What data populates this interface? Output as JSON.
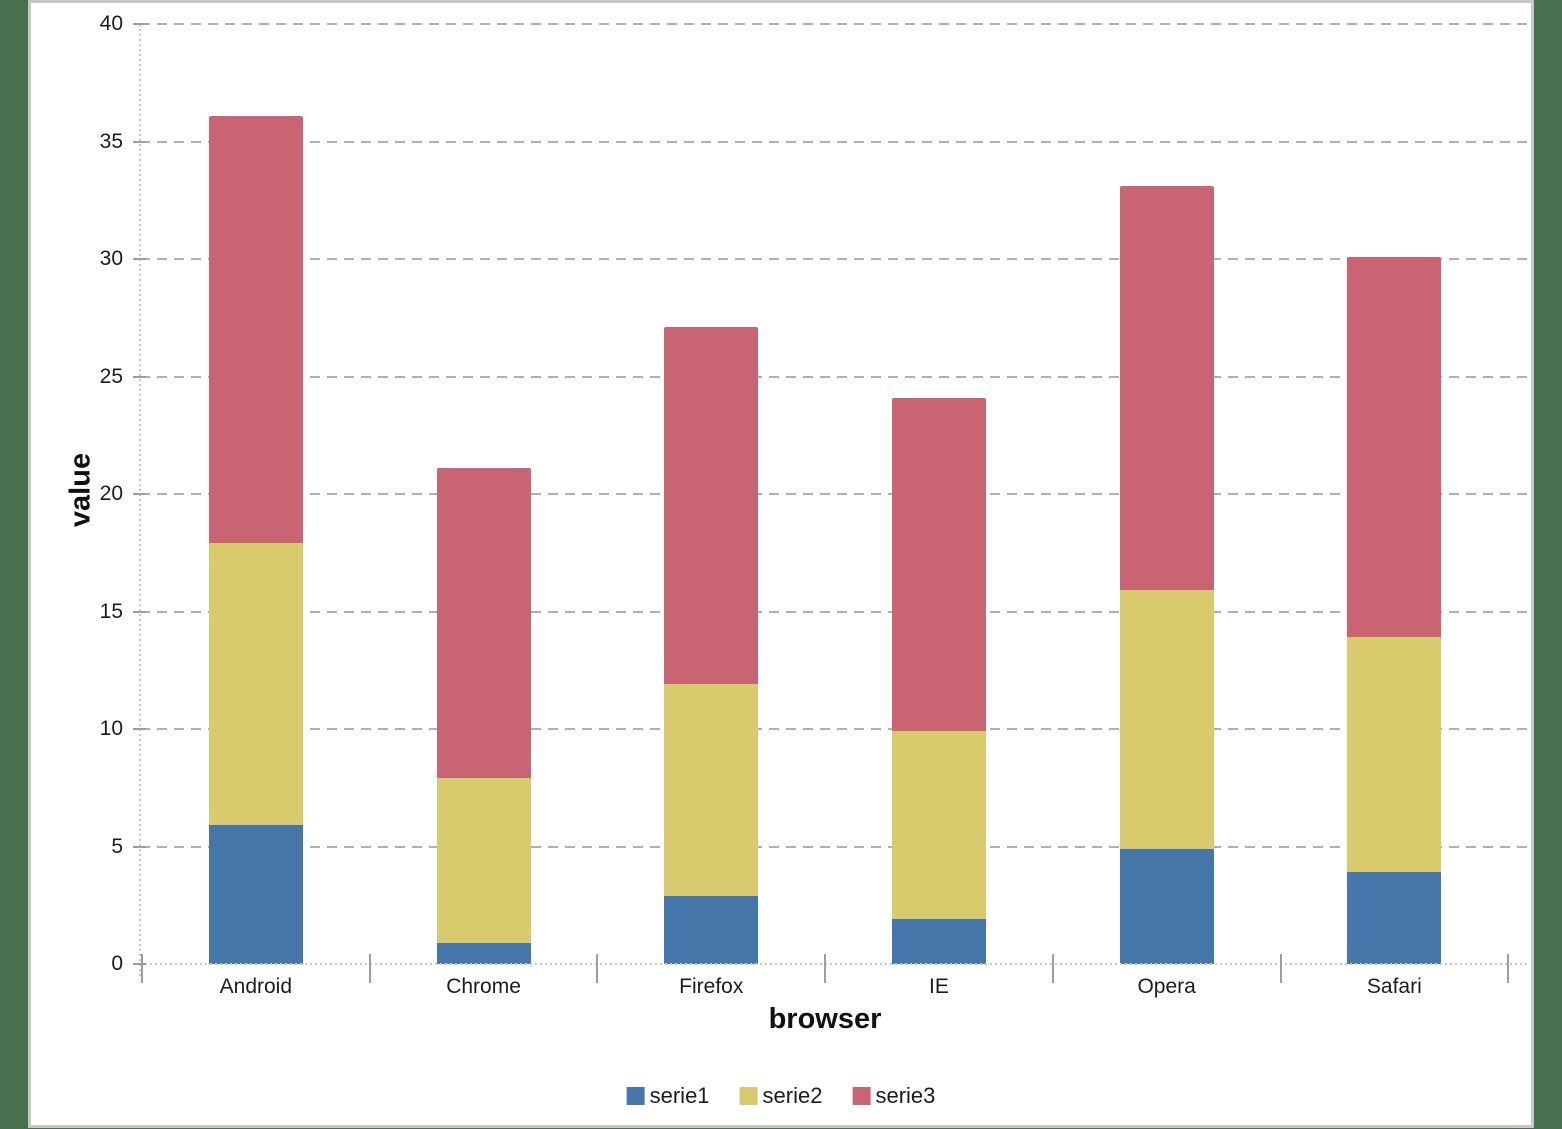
{
  "page": {
    "background_color": "#48704F",
    "canvas_background": "#FFFFFF",
    "canvas_border_color": "#C8C8C8"
  },
  "chart_data": {
    "type": "bar",
    "stacked": true,
    "categories": [
      "Android",
      "Chrome",
      "Firefox",
      "IE",
      "Opera",
      "Safari"
    ],
    "series": [
      {
        "name": "serie1",
        "color": "#4577AA",
        "values": [
          5.9,
          0.9,
          2.9,
          1.9,
          4.9,
          3.9
        ]
      },
      {
        "name": "serie2",
        "color": "#DACA6E",
        "values": [
          12,
          7,
          9,
          8,
          11,
          10
        ]
      },
      {
        "name": "serie3",
        "color": "#C96473",
        "values": [
          18.2,
          13.2,
          15.2,
          14.2,
          17.2,
          16.2
        ]
      }
    ],
    "stack_totals": [
      36.1,
      21.1,
      27.1,
      24.1,
      33.1,
      30.1
    ],
    "xlabel": "browser",
    "ylabel": "value",
    "ylim": [
      0,
      40
    ],
    "yticks": [
      0,
      5,
      10,
      15,
      20,
      25,
      30,
      35,
      40
    ],
    "grid": "horizontal-dashed",
    "legend_position": "bottom",
    "styles": {
      "gridline_color": "#B0B0B0",
      "axis_line_color": "#C9C9C9",
      "tick_color": "#9E9E9E",
      "text_color": "#1C1C1C"
    }
  }
}
